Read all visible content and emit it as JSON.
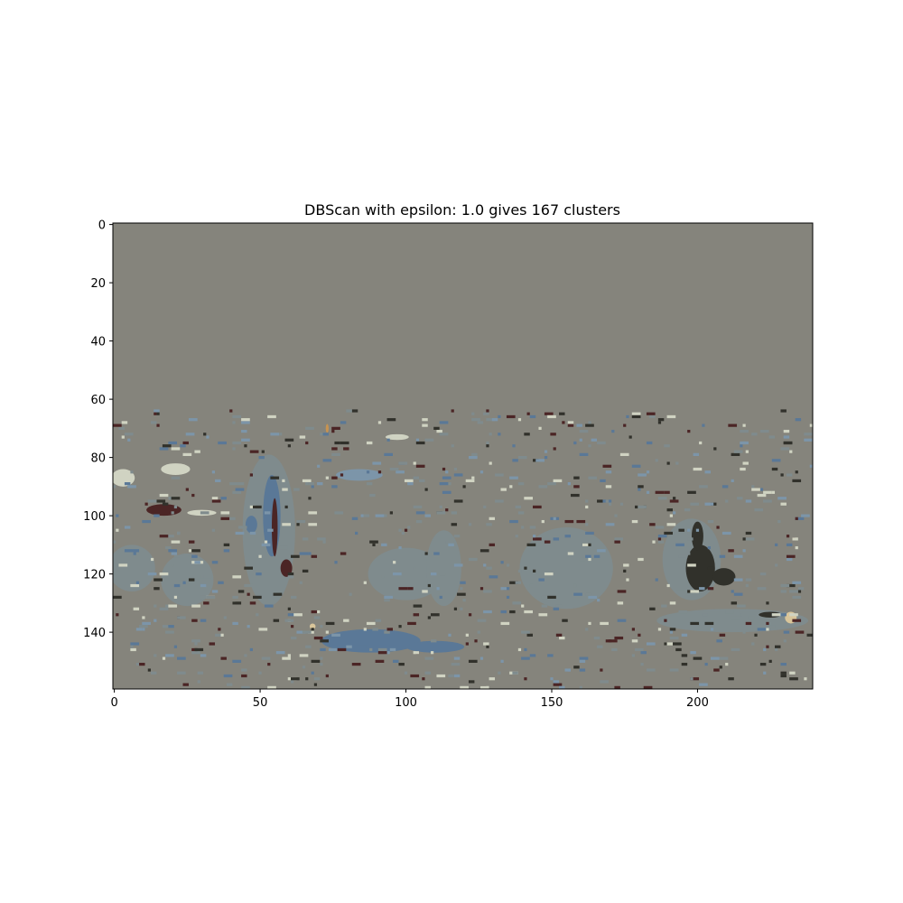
{
  "chart_data": {
    "type": "heatmap",
    "title": "DBScan with epsilon: 1.0 gives 167 clusters",
    "image_shape": {
      "rows": 160,
      "cols": 240
    },
    "xlim": [
      -0.5,
      239.5
    ],
    "ylim": [
      159.5,
      -0.5
    ],
    "x_ticks": [
      0,
      50,
      100,
      150,
      200
    ],
    "y_ticks": [
      0,
      20,
      40,
      60,
      80,
      100,
      120,
      140
    ],
    "grid": false,
    "colors": {
      "background_cluster": "#85847c",
      "large_cluster": "#7f8b8d",
      "blue_cluster": "#5a7897",
      "light_blue_cluster": "#7c95a9",
      "dark_red_cluster": "#4b2525",
      "dark_cluster": "#31312b",
      "cream_cluster": "#d0d3c2",
      "tan_cluster": "#d9c59a",
      "orange_cluster": "#c89350"
    },
    "regions": [
      {
        "label": "large_cluster",
        "shape": "ellipse",
        "x": 6,
        "y": 118,
        "rx": 8,
        "ry": 8
      },
      {
        "label": "large_cluster",
        "shape": "ellipse",
        "x": 25,
        "y": 122,
        "rx": 9,
        "ry": 9
      },
      {
        "label": "large_cluster",
        "shape": "ellipse",
        "x": 53,
        "y": 105,
        "rx": 9,
        "ry": 26
      },
      {
        "label": "large_cluster",
        "shape": "ellipse",
        "x": 100,
        "y": 120,
        "rx": 13,
        "ry": 9
      },
      {
        "label": "large_cluster",
        "shape": "ellipse",
        "x": 113,
        "y": 118,
        "rx": 6,
        "ry": 13
      },
      {
        "label": "large_cluster",
        "shape": "ellipse",
        "x": 155,
        "y": 118,
        "rx": 16,
        "ry": 14
      },
      {
        "label": "large_cluster",
        "shape": "ellipse",
        "x": 198,
        "y": 115,
        "rx": 10,
        "ry": 14
      },
      {
        "label": "large_cluster",
        "shape": "ellipse",
        "x": 212,
        "y": 136,
        "rx": 26,
        "ry": 4
      },
      {
        "label": "blue_cluster",
        "shape": "ellipse",
        "x": 54,
        "y": 100,
        "rx": 3,
        "ry": 14
      },
      {
        "label": "blue_cluster",
        "shape": "ellipse",
        "x": 47,
        "y": 103,
        "rx": 2,
        "ry": 3
      },
      {
        "label": "blue_cluster",
        "shape": "ellipse",
        "x": 88,
        "y": 143,
        "rx": 17,
        "ry": 4
      },
      {
        "label": "blue_cluster",
        "shape": "ellipse",
        "x": 110,
        "y": 145,
        "rx": 10,
        "ry": 2
      },
      {
        "label": "light_blue_cluster",
        "shape": "ellipse",
        "x": 84,
        "y": 86,
        "rx": 8,
        "ry": 2
      },
      {
        "label": "dark_red_cluster",
        "shape": "ellipse",
        "x": 17,
        "y": 98,
        "rx": 6,
        "ry": 2
      },
      {
        "label": "dark_red_cluster",
        "shape": "ellipse",
        "x": 55,
        "y": 104,
        "rx": 1,
        "ry": 10
      },
      {
        "label": "dark_red_cluster",
        "shape": "ellipse",
        "x": 59,
        "y": 118,
        "rx": 2,
        "ry": 3
      },
      {
        "label": "dark_cluster",
        "shape": "ellipse",
        "x": 201,
        "y": 118,
        "rx": 5,
        "ry": 8
      },
      {
        "label": "dark_cluster",
        "shape": "ellipse",
        "x": 209,
        "y": 121,
        "rx": 4,
        "ry": 3
      },
      {
        "label": "dark_cluster",
        "shape": "ellipse",
        "x": 200,
        "y": 107,
        "rx": 2,
        "ry": 5
      },
      {
        "label": "dark_cluster",
        "shape": "ellipse",
        "x": 225,
        "y": 134,
        "rx": 4,
        "ry": 1
      },
      {
        "label": "cream_cluster",
        "shape": "ellipse",
        "x": 3,
        "y": 87,
        "rx": 4,
        "ry": 3
      },
      {
        "label": "cream_cluster",
        "shape": "ellipse",
        "x": 21,
        "y": 84,
        "rx": 5,
        "ry": 2
      },
      {
        "label": "cream_cluster",
        "shape": "ellipse",
        "x": 30,
        "y": 99,
        "rx": 5,
        "ry": 1
      },
      {
        "label": "cream_cluster",
        "shape": "ellipse",
        "x": 97,
        "y": 73,
        "rx": 4,
        "ry": 1
      },
      {
        "label": "tan_cluster",
        "shape": "ellipse",
        "x": 232,
        "y": 135,
        "rx": 2,
        "ry": 2
      },
      {
        "label": "tan_cluster",
        "shape": "ellipse",
        "x": 68,
        "y": 138,
        "rx": 1,
        "ry": 1
      },
      {
        "label": "orange_cluster",
        "shape": "ellipse",
        "x": 73,
        "y": 70,
        "rx": 0.5,
        "ry": 1.5
      }
    ]
  }
}
